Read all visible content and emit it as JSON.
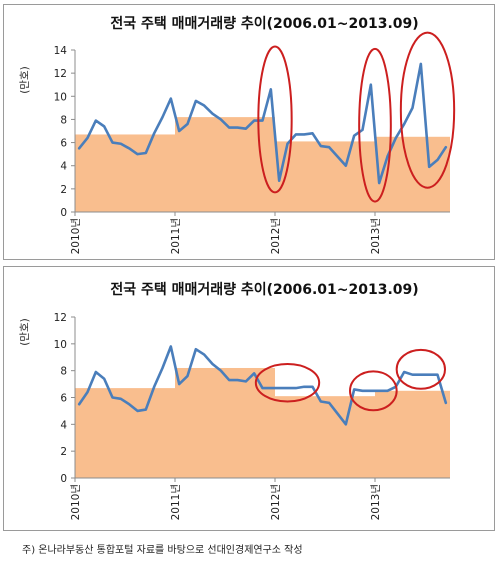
{
  "chart_data": [
    {
      "type": "line",
      "title": "전국 주택 매매거래량 추이(2006.01~2013.09)",
      "ylabel": "(만호)",
      "xlabel": "",
      "ylim": [
        0,
        14
      ],
      "yticks": [
        0,
        2,
        4,
        6,
        8,
        10,
        12,
        14
      ],
      "x_tick_labels": [
        {
          "index": 0,
          "label": "2010년"
        },
        {
          "index": 12,
          "label": "2011년"
        },
        {
          "index": 24,
          "label": "2012년"
        },
        {
          "index": 36,
          "label": "2013년"
        }
      ],
      "n_months": 45,
      "series": [
        {
          "style": "line",
          "color": "#4a7ebb",
          "values": [
            5.5,
            6.4,
            7.9,
            7.4,
            6.0,
            5.9,
            5.5,
            5.0,
            5.1,
            6.8,
            8.2,
            9.8,
            7.0,
            7.6,
            9.6,
            9.2,
            8.5,
            8.0,
            7.3,
            7.3,
            7.2,
            7.9,
            7.9,
            10.6,
            2.7,
            5.9,
            6.7,
            6.7,
            6.8,
            5.7,
            5.6,
            4.8,
            4.0,
            6.6,
            7.1,
            11.0,
            2.5,
            4.8,
            6.4,
            7.6,
            9.0,
            12.8,
            3.9,
            4.5,
            5.6
          ]
        },
        {
          "style": "area",
          "color": "#f9be8e",
          "segments": [
            {
              "start": 0,
              "end": 12,
              "value": 6.7
            },
            {
              "start": 12,
              "end": 24,
              "value": 8.2
            },
            {
              "start": 24,
              "end": 36,
              "value": 6.1
            },
            {
              "start": 36,
              "end": 45,
              "value": 6.5
            }
          ]
        }
      ],
      "annotations": [
        {
          "type": "ellipse",
          "color": "#cc1f1f",
          "x_center": 23.5,
          "y_center": 8.0,
          "x_halfwidth": 2.0,
          "y_halfwidth": 6.3
        },
        {
          "type": "ellipse",
          "color": "#cc1f1f",
          "x_center": 35.5,
          "y_center": 7.5,
          "x_halfwidth": 1.9,
          "y_halfwidth": 6.6
        },
        {
          "type": "ellipse",
          "color": "#cc1f1f",
          "x_center": 41.8,
          "y_center": 8.8,
          "x_halfwidth": 3.2,
          "y_halfwidth": 6.7
        }
      ]
    },
    {
      "type": "line",
      "title": "전국 주택 매매거래량 추이(2006.01~2013.09)",
      "ylabel": "(만호)",
      "xlabel": "",
      "ylim": [
        0,
        12
      ],
      "yticks": [
        0,
        2,
        4,
        6,
        8,
        10,
        12
      ],
      "x_tick_labels": [
        {
          "index": 0,
          "label": "2010년"
        },
        {
          "index": 12,
          "label": "2011년"
        },
        {
          "index": 24,
          "label": "2012년"
        },
        {
          "index": 36,
          "label": "2013년"
        }
      ],
      "n_months": 45,
      "series": [
        {
          "style": "line",
          "color": "#4a7ebb",
          "values": [
            5.5,
            6.4,
            7.9,
            7.4,
            6.0,
            5.9,
            5.5,
            5.0,
            5.1,
            6.8,
            8.2,
            9.8,
            7.0,
            7.6,
            9.6,
            9.2,
            8.5,
            8.0,
            7.3,
            7.3,
            7.2,
            7.8,
            6.7,
            6.7,
            6.7,
            6.7,
            6.7,
            6.8,
            6.8,
            5.7,
            5.6,
            4.8,
            4.0,
            6.6,
            6.5,
            6.5,
            6.5,
            6.5,
            6.8,
            7.9,
            7.7,
            7.7,
            7.7,
            7.7,
            5.6
          ]
        },
        {
          "style": "area",
          "color": "#f9be8e",
          "segments": [
            {
              "start": 0,
              "end": 12,
              "value": 6.7
            },
            {
              "start": 12,
              "end": 24,
              "value": 8.2
            },
            {
              "start": 24,
              "end": 36,
              "value": 6.1
            },
            {
              "start": 36,
              "end": 45,
              "value": 6.5
            }
          ]
        }
      ],
      "annotations": [
        {
          "type": "ellipse",
          "color": "#cc1f1f",
          "x_center": 25.0,
          "y_center": 7.1,
          "x_halfwidth": 3.8,
          "y_halfwidth": 1.4
        },
        {
          "type": "ellipse",
          "color": "#cc1f1f",
          "x_center": 35.3,
          "y_center": 6.5,
          "x_halfwidth": 2.8,
          "y_halfwidth": 1.45
        },
        {
          "type": "ellipse",
          "color": "#cc1f1f",
          "x_center": 41.0,
          "y_center": 8.1,
          "x_halfwidth": 2.9,
          "y_halfwidth": 1.45
        }
      ]
    }
  ],
  "footnote": "주) 온나라부동산 통합포털 자료를 바탕으로 선대인경제연구소 작성"
}
